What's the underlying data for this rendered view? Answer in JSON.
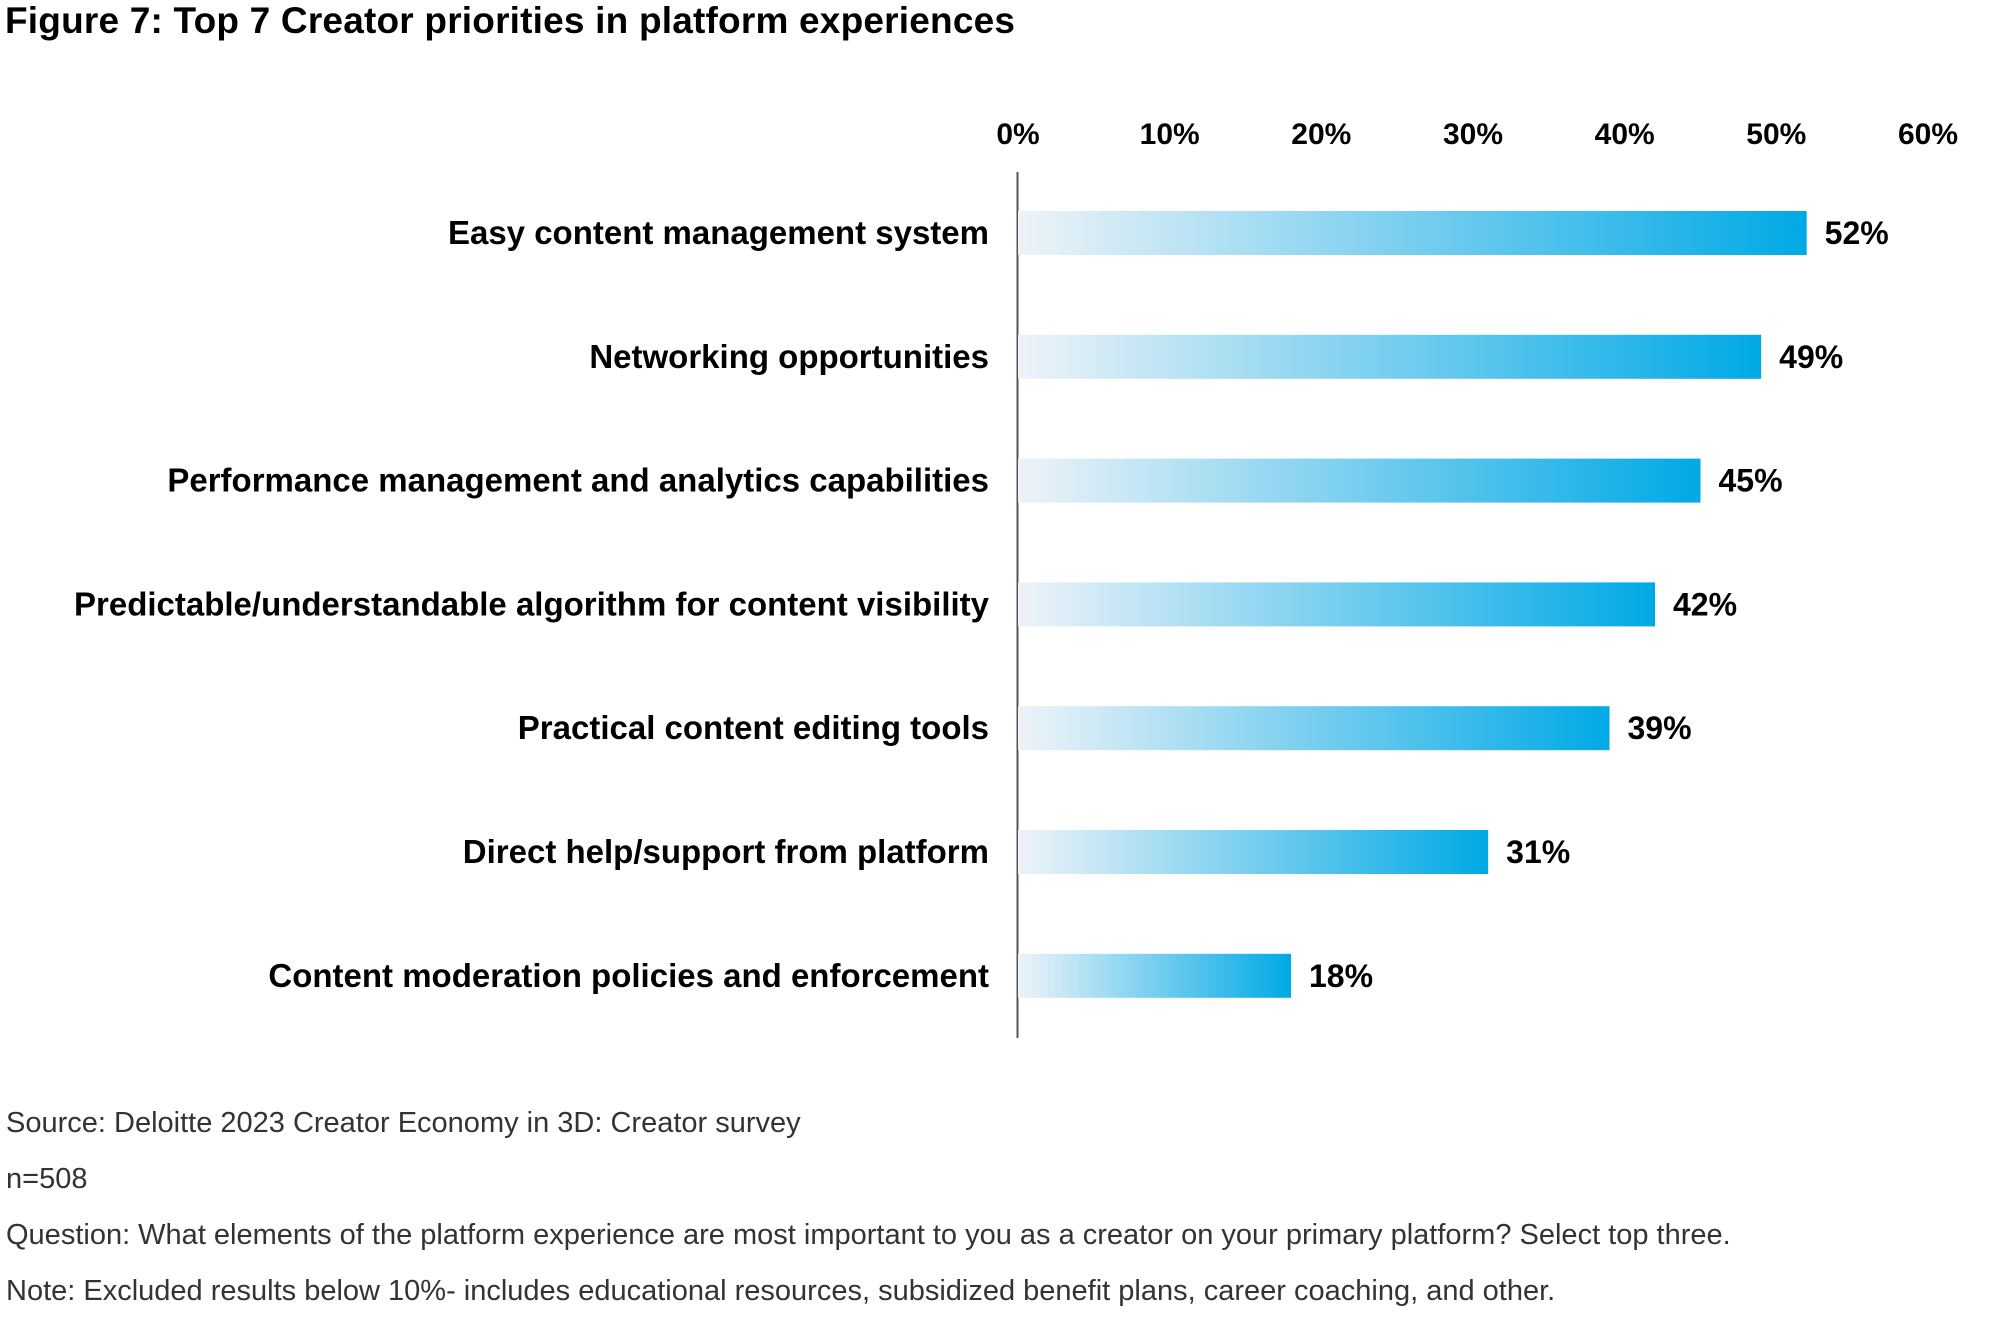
{
  "title": "Figure 7: Top 7 Creator priorities in platform experiences",
  "chart_data": {
    "type": "bar",
    "orientation": "horizontal",
    "categories": [
      "Easy content management system",
      "Networking opportunities",
      "Performance management and analytics capabilities",
      "Predictable/understandable algorithm for content visibility",
      "Practical content editing tools",
      "Direct help/support from platform",
      "Content moderation policies and enforcement"
    ],
    "values": [
      52,
      49,
      45,
      42,
      39,
      31,
      18
    ],
    "value_labels": [
      "52%",
      "49%",
      "45%",
      "42%",
      "39%",
      "31%",
      "18%"
    ],
    "xlim": [
      0,
      60
    ],
    "ticks": [
      "0%",
      "10%",
      "20%",
      "30%",
      "40%",
      "50%",
      "60%"
    ],
    "axis_position": "top",
    "bar_color": "#00a9e6",
    "bar_fade_color": "#eef3f8",
    "axis_color": "#555555"
  },
  "notes": {
    "source": "Source: Deloitte 2023 Creator Economy in 3D: Creator survey",
    "sample": "n=508",
    "question": "Question: What elements of the platform experience are most important to you as a creator on your primary platform? Select top three.",
    "note": "Note: Excluded results below 10%- includes educational resources, subsidized benefit plans, career coaching, and other."
  }
}
